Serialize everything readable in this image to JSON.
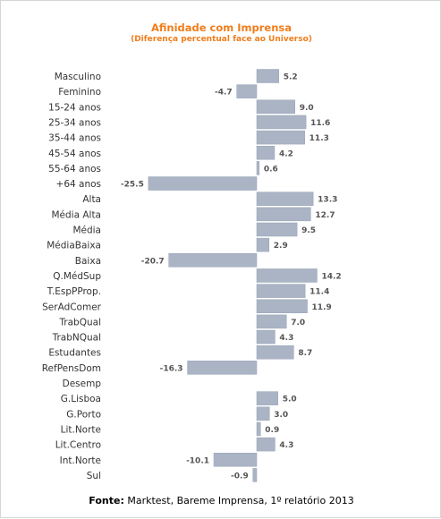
{
  "chart_data": {
    "type": "bar",
    "orientation": "horizontal",
    "title": "Afinidade com Imprensa",
    "subtitle": "(Diferença percentual  face ao Universo)",
    "categories": [
      "Masculino",
      "Feminino",
      "15-24 anos",
      "25-34 anos",
      "35-44 anos",
      "45-54 anos",
      "55-64 anos",
      "+64 anos",
      "Alta",
      "Média Alta",
      "Média",
      "MédiaBaixa",
      "Baixa",
      "Q.MédSup",
      "T.EspPProp.",
      "SerAdComer",
      "TrabQual",
      "TrabNQual",
      "Estudantes",
      "RefPensDom",
      "Desemp",
      "G.Lisboa",
      "G.Porto",
      "Lit.Norte",
      "Lit.Centro",
      "Int.Norte",
      "Sul"
    ],
    "values": [
      5.2,
      -4.7,
      9.0,
      11.6,
      11.3,
      4.2,
      0.6,
      -25.5,
      13.3,
      12.7,
      9.5,
      2.9,
      -20.7,
      14.2,
      11.4,
      11.9,
      7.0,
      4.3,
      8.7,
      -16.3,
      null,
      5.0,
      3.0,
      0.9,
      4.3,
      -10.1,
      -0.9
    ],
    "value_labels": [
      "5.2",
      "-4.7",
      "9.0",
      "11.6",
      "11.3",
      "4.2",
      "0.6",
      "-25.5",
      "13.3",
      "12.7",
      "9.5",
      "2.9",
      "-20.7",
      "14.2",
      "11.4",
      "11.9",
      "7.0",
      "4.3",
      "8.7",
      "-16.3",
      "",
      "5.0",
      "3.0",
      "0.9",
      "4.3",
      "-10.1",
      "-0.9"
    ],
    "xlim": [
      -30,
      25
    ],
    "grid": false,
    "legend": "none",
    "bar_color": "#aab4c5",
    "bar_border_color": "#98a3b6",
    "title_color": "#f07d1b"
  },
  "source": {
    "prefix": "Fonte:",
    "text": " Marktest, Bareme Imprensa, 1º relatório 2013"
  }
}
